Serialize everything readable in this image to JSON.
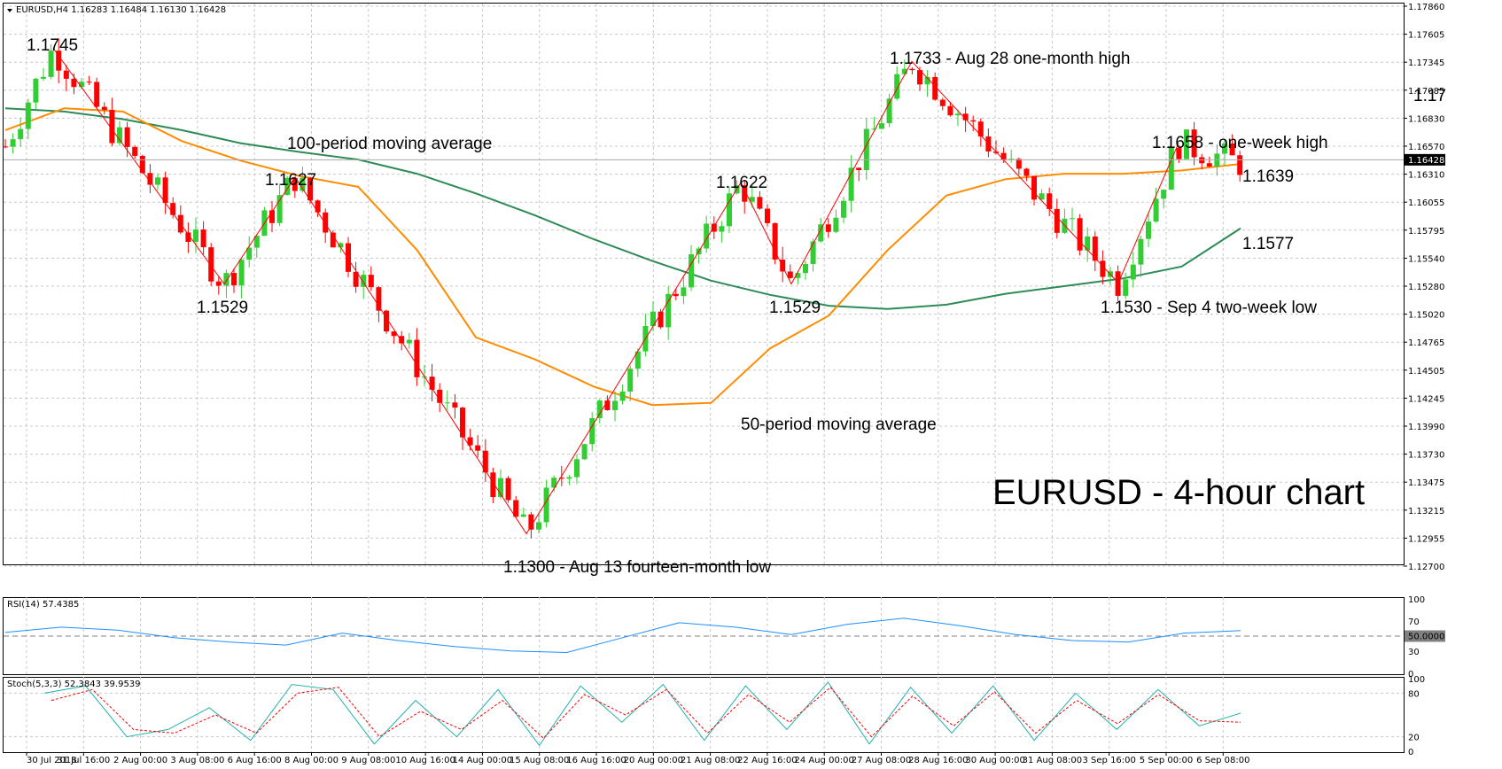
{
  "header": {
    "symbol_line": "EURUSD,H4  1.16283 1.16484 1.16130 1.16428",
    "rsi_line": "RSI(14) 57.4385",
    "stoch_line": "Stoch(5,3,3) 52.3843 39.9539"
  },
  "colors": {
    "bull": "#32cd32",
    "bear": "#ff0000",
    "ma50": "#ff8c00",
    "ma100": "#2e8b57",
    "zigzag": "#ff0000",
    "rsi": "#1e90ff",
    "stoch_main": "#20b2aa",
    "stoch_signal": "#ff0000",
    "grid": "#c8c8c8"
  },
  "chart_data": [
    {
      "type": "candlestick",
      "title": "EURUSD - 4-hour chart",
      "symbol": "EURUSD",
      "timeframe": "H4",
      "ylim": [
        1.1272,
        1.1786
      ],
      "grid": true,
      "y_ticks": [
        "1.17860",
        "1.17605",
        "1.17345",
        "1.17085",
        "1.16830",
        "1.16570",
        "1.16310",
        "1.16055",
        "1.15795",
        "1.15540",
        "1.15280",
        "1.15020",
        "1.14765",
        "1.14505",
        "1.14245",
        "1.13990",
        "1.13730",
        "1.13475",
        "1.13215",
        "1.12955",
        "1.12700"
      ],
      "x_ticks": [
        "30 Jul 2018",
        "31 Jul 16:00",
        "2 Aug 00:00",
        "3 Aug 08:00",
        "6 Aug 16:00",
        "8 Aug 00:00",
        "9 Aug 08:00",
        "10 Aug 16:00",
        "14 Aug 00:00",
        "15 Aug 08:00",
        "16 Aug 16:00",
        "20 Aug 00:00",
        "21 Aug 08:00",
        "22 Aug 16:00",
        "24 Aug 00:00",
        "27 Aug 08:00",
        "28 Aug 16:00",
        "30 Aug 00:00",
        "31 Aug 08:00",
        "3 Sep 16:00",
        "5 Sep 00:00",
        "6 Sep 08:00"
      ],
      "price_tag": "1.16428",
      "last_price": 1.16428,
      "series": [
        {
          "name": "100-period moving average",
          "values": [
            1.169,
            1.1687,
            1.168,
            1.167,
            1.1658,
            1.165,
            1.1643,
            1.163,
            1.1612,
            1.1592,
            1.157,
            1.155,
            1.1532,
            1.1519,
            1.1509,
            1.1506,
            1.151,
            1.152,
            1.1527,
            1.1534,
            1.1545,
            1.158
          ]
        },
        {
          "name": "50-period moving average",
          "values": [
            1.167,
            1.169,
            1.1687,
            1.166,
            1.1642,
            1.1628,
            1.1618,
            1.156,
            1.148,
            1.146,
            1.1435,
            1.1418,
            1.142,
            1.147,
            1.15,
            1.156,
            1.161,
            1.1625,
            1.163,
            1.163,
            1.1633,
            1.1639
          ]
        }
      ],
      "zigzag": [
        1.1745,
        1.1529,
        1.1627,
        1.13,
        1.1622,
        1.1529,
        1.1733,
        1.153,
        1.1658
      ],
      "annotations": [
        {
          "text": "1.1745"
        },
        {
          "text": "1.1529"
        },
        {
          "text": "1.1627"
        },
        {
          "text": "1.1300 - Aug 13 fourteen-month low"
        },
        {
          "text": "1.1622"
        },
        {
          "text": "1.1529"
        },
        {
          "text": "1.1733 - Aug 28 one-month high"
        },
        {
          "text": "1.1530 - Sep 4 two-week low"
        },
        {
          "text": "1.1658 - one-week high"
        },
        {
          "text": "1.17"
        },
        {
          "text": "1.1639"
        },
        {
          "text": "1.1577"
        },
        {
          "text": "100-period moving average"
        },
        {
          "text": "50-period moving average"
        }
      ]
    },
    {
      "type": "line",
      "name": "RSI(14)",
      "ylim": [
        0,
        100
      ],
      "y_ticks": [
        "100",
        "70",
        "50.0000",
        "30",
        "0"
      ],
      "level_line": 50,
      "series": [
        {
          "name": "RSI(14)",
          "values": [
            55,
            62,
            58,
            48,
            42,
            38,
            54,
            44,
            36,
            30,
            28,
            48,
            68,
            62,
            52,
            66,
            74,
            64,
            52,
            44,
            42,
            54,
            57.4385
          ]
        }
      ]
    },
    {
      "type": "line",
      "name": "Stoch(5,3,3)",
      "ylim": [
        0,
        100
      ],
      "y_ticks": [
        "100",
        "80",
        "20",
        "0"
      ],
      "series": [
        {
          "name": "main",
          "values": [
            80,
            90,
            20,
            30,
            60,
            15,
            92,
            85,
            10,
            70,
            20,
            85,
            8,
            90,
            40,
            92,
            15,
            90,
            30,
            95,
            10,
            88,
            25,
            90,
            15,
            80,
            30,
            85,
            35,
            52.3843
          ]
        },
        {
          "name": "signal",
          "values": [
            70,
            85,
            30,
            25,
            50,
            25,
            80,
            88,
            20,
            55,
            30,
            70,
            18,
            78,
            50,
            85,
            25,
            78,
            40,
            88,
            20,
            76,
            35,
            82,
            25,
            70,
            38,
            78,
            42,
            39.9539
          ]
        }
      ]
    }
  ]
}
